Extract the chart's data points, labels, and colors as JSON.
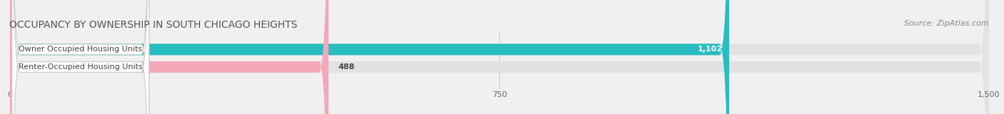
{
  "title": "OCCUPANCY BY OWNERSHIP IN SOUTH CHICAGO HEIGHTS",
  "source": "Source: ZipAtlas.com",
  "categories": [
    "Owner Occupied Housing Units",
    "Renter-Occupied Housing Units"
  ],
  "values": [
    1102,
    488
  ],
  "bar_colors": [
    "#29bcc1",
    "#f4a7b9"
  ],
  "label_colors": [
    "white",
    "#555555"
  ],
  "value_labels": [
    "1,102",
    "488"
  ],
  "xlim": [
    0,
    1500
  ],
  "xticks": [
    0,
    750,
    1500
  ],
  "xtick_labels": [
    "0",
    "750",
    "1,500"
  ],
  "background_color": "#f0f0f0",
  "bar_background_color": "#e2e2e2",
  "title_fontsize": 10,
  "source_fontsize": 8,
  "label_fontsize": 8,
  "value_fontsize": 8
}
